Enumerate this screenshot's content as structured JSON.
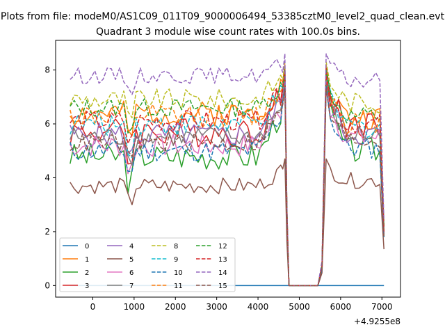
{
  "chart_data": {
    "type": "line",
    "suptitle": "Plots from file: modeM0/AS1C09_011T09_9000006494_53385cztM0_level2_quad_clean.evt",
    "title": "Quadrant 3 module wise count rates with 100.0s bins.",
    "xlabel": "",
    "ylabel": "",
    "x_offset_text": "+4.9255e8",
    "xlim": [
      -900,
      7450
    ],
    "ylim": [
      -0.43,
      9.1
    ],
    "xticks": [
      0,
      1000,
      2000,
      3000,
      4000,
      5000,
      6000,
      7000
    ],
    "yticks": [
      0,
      2,
      4,
      6,
      8
    ],
    "legend": {
      "position": "lower-left",
      "columns": 4
    },
    "x_start": -550,
    "x_step": 100,
    "gap": {
      "drop_start": 4650,
      "zero_from": 4750,
      "zero_to": 5450,
      "rise_end": 5650
    },
    "end_value_x": 7050,
    "zero_series_value": 0,
    "series": [
      {
        "name": "0",
        "color": "#1f77b4",
        "style": "solid",
        "pre_mean": 0,
        "post_mean": 0,
        "peak": 0,
        "amp": 0,
        "end": 0
      },
      {
        "name": "1",
        "color": "#ff7f0e",
        "style": "solid",
        "pre_mean": 6.4,
        "post_mean": 6.2,
        "peak": 8.2,
        "amp": 0.45,
        "end": 2.0
      },
      {
        "name": "2",
        "color": "#2ca02c",
        "style": "solid",
        "pre_mean": 4.8,
        "post_mean": 5.0,
        "peak": 7.8,
        "amp": 0.5,
        "end": 1.8
      },
      {
        "name": "3",
        "color": "#d62728",
        "style": "solid",
        "pre_mean": 5.7,
        "post_mean": 6.0,
        "peak": 8.1,
        "amp": 0.55,
        "end": 2.2
      },
      {
        "name": "4",
        "color": "#9467bd",
        "style": "solid",
        "pre_mean": 5.6,
        "post_mean": 5.6,
        "peak": 7.7,
        "amp": 0.45,
        "end": 2.0
      },
      {
        "name": "5",
        "color": "#8c564b",
        "style": "solid",
        "pre_mean": 3.7,
        "post_mean": 3.9,
        "peak": 4.7,
        "amp": 0.3,
        "end": 1.35
      },
      {
        "name": "6",
        "color": "#e377c2",
        "style": "solid",
        "pre_mean": 5.2,
        "post_mean": 5.5,
        "peak": 7.6,
        "amp": 0.45,
        "end": 1.9
      },
      {
        "name": "7",
        "color": "#7f7f7f",
        "style": "solid",
        "pre_mean": 5.5,
        "post_mean": 5.6,
        "peak": 7.5,
        "amp": 0.4,
        "end": 1.9
      },
      {
        "name": "8",
        "color": "#bcbd22",
        "style": "dashed",
        "pre_mean": 6.9,
        "post_mean": 6.8,
        "peak": 8.3,
        "amp": 0.4,
        "end": 2.3
      },
      {
        "name": "9",
        "color": "#17becf",
        "style": "dashed",
        "pre_mean": 6.0,
        "post_mean": 5.9,
        "peak": 7.9,
        "amp": 0.45,
        "end": 2.1
      },
      {
        "name": "10",
        "color": "#1f77b4",
        "style": "dashed",
        "pre_mean": 5.0,
        "post_mean": 5.1,
        "peak": 7.4,
        "amp": 0.4,
        "end": 1.8
      },
      {
        "name": "11",
        "color": "#ff7f0e",
        "style": "dashed",
        "pre_mean": 6.3,
        "post_mean": 6.1,
        "peak": 8.0,
        "amp": 0.45,
        "end": 2.1
      },
      {
        "name": "12",
        "color": "#2ca02c",
        "style": "dashed",
        "pre_mean": 6.6,
        "post_mean": 6.3,
        "peak": 8.0,
        "amp": 0.35,
        "end": 2.2
      },
      {
        "name": "13",
        "color": "#d62728",
        "style": "dashed",
        "pre_mean": 6.1,
        "post_mean": 6.0,
        "peak": 7.9,
        "amp": 0.4,
        "end": 2.0
      },
      {
        "name": "14",
        "color": "#9467bd",
        "style": "dashed",
        "pre_mean": 7.8,
        "post_mean": 7.6,
        "peak": 8.6,
        "amp": 0.3,
        "end": 2.4
      },
      {
        "name": "15",
        "color": "#8c564b",
        "style": "dashed",
        "pre_mean": 5.3,
        "post_mean": 5.4,
        "peak": 7.3,
        "amp": 0.35,
        "end": 1.8
      }
    ]
  }
}
